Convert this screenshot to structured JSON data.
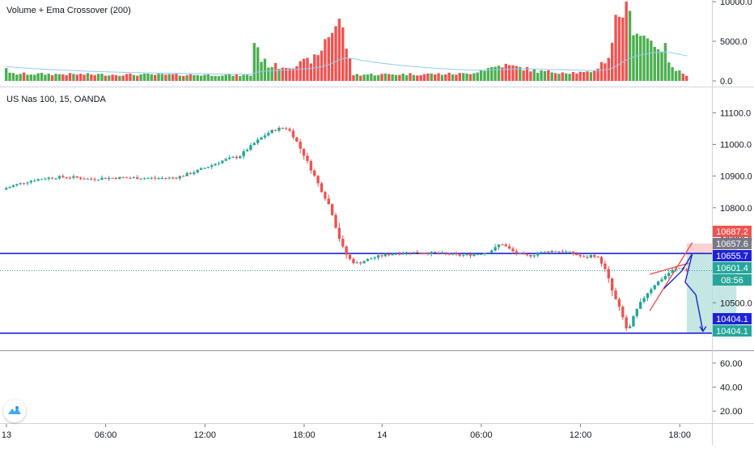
{
  "indicator_pane": {
    "label": "Volume + Ema Crossover (200)",
    "axis_ticks": [
      "10000.0",
      "5000.0",
      "0.0"
    ]
  },
  "price_pane": {
    "label": "US Nas 100, 15, OANDA",
    "price_badges": [
      {
        "text": "10687.2",
        "color": "#ef5350"
      },
      {
        "text": "10657.6",
        "color": "#787b86"
      },
      {
        "text": "10655.7",
        "color": "#1e22d6"
      },
      {
        "text": "10601.4",
        "color": "#26a69a"
      },
      {
        "text": "08:56",
        "color": "#26a69a"
      },
      {
        "text": "10404.1",
        "color": "#1e22d6"
      },
      {
        "text": "10404.1",
        "color": "#26a69a"
      }
    ]
  },
  "oscillator_pane": {
    "axis_ticks": [
      "60.00",
      "40.00",
      "20.00"
    ]
  },
  "time_axis": {
    "labels": [
      "13",
      "06:00",
      "12:00",
      "18:00",
      "14",
      "06:00",
      "12:00",
      "18:00"
    ]
  },
  "colors": {
    "up": "#26a69a",
    "down": "#ef5350",
    "volume_up": "#4caf50",
    "volume_down": "#ef5350",
    "level_line": "#1e22d6",
    "current_price_line": "#26a69a",
    "target_zone": "#b2dfdb",
    "stop_zone": "#f8c8c6"
  },
  "chart_data": {
    "type": "candlestick",
    "timeframe": "15",
    "price_ylim": [
      10350,
      11180
    ],
    "price_axis_ticks": [
      11100,
      11000,
      10900,
      10800,
      10700,
      10500
    ],
    "volume_ylim": [
      0,
      10000
    ],
    "horizontal_levels": [
      10655.7,
      10404.1
    ],
    "current_price": 10601.4,
    "path_segments": [
      [
        [
          0,
          10860
        ],
        [
          8,
          10895
        ],
        [
          16,
          10905
        ],
        [
          24,
          10890
        ]
      ],
      [
        [
          24,
          10890
        ],
        [
          32,
          10900
        ],
        [
          40,
          10890
        ],
        [
          48,
          10895
        ]
      ],
      [
        [
          48,
          10895
        ],
        [
          56,
          10915
        ],
        [
          62,
          10960
        ],
        [
          66,
          10960
        ]
      ],
      [
        [
          66,
          10960
        ],
        [
          72,
          11020
        ],
        [
          76,
          11060
        ],
        [
          80,
          11050
        ]
      ],
      [
        [
          80,
          11050
        ],
        [
          84,
          10990
        ],
        [
          88,
          10880
        ],
        [
          92,
          10800
        ]
      ],
      [
        [
          92,
          10800
        ],
        [
          94,
          10720
        ],
        [
          96,
          10620
        ],
        [
          100,
          10625
        ]
      ],
      [
        [
          100,
          10625
        ],
        [
          108,
          10668
        ],
        [
          118,
          10662
        ],
        [
          128,
          10650
        ]
      ],
      [
        [
          128,
          10650
        ],
        [
          134,
          10652
        ],
        [
          138,
          10658
        ],
        [
          140,
          10690
        ]
      ],
      [
        [
          140,
          10690
        ],
        [
          143,
          10665
        ],
        [
          146,
          10635
        ],
        [
          150,
          10655
        ]
      ],
      [
        [
          150,
          10655
        ],
        [
          156,
          10672
        ],
        [
          160,
          10660
        ],
        [
          164,
          10640
        ]
      ],
      [
        [
          164,
          10640
        ],
        [
          168,
          10680
        ],
        [
          170,
          10590
        ],
        [
          172,
          10520
        ]
      ],
      [
        [
          172,
          10520
        ],
        [
          174,
          10480
        ],
        [
          175,
          10430
        ],
        [
          176,
          10405
        ]
      ],
      [
        [
          176,
          10405
        ],
        [
          178,
          10490
        ],
        [
          182,
          10550
        ],
        [
          186,
          10580
        ]
      ],
      [
        [
          186,
          10580
        ],
        [
          188,
          10600
        ],
        [
          190,
          10620
        ],
        [
          192,
          10603
        ]
      ]
    ],
    "volume_profile": [
      [
        0,
        1800
      ],
      [
        1,
        900
      ],
      [
        30,
        800
      ],
      [
        60,
        750
      ],
      [
        69,
        700
      ],
      [
        70,
        5000
      ],
      [
        71,
        4200
      ],
      [
        72,
        2800
      ],
      [
        74,
        2000
      ],
      [
        78,
        1800
      ],
      [
        82,
        2000
      ],
      [
        88,
        3000
      ],
      [
        90,
        5200
      ],
      [
        92,
        6500
      ],
      [
        94,
        7800
      ],
      [
        96,
        4500
      ],
      [
        97,
        2500
      ],
      [
        98,
        800
      ],
      [
        130,
        900
      ],
      [
        140,
        2000
      ],
      [
        146,
        1600
      ],
      [
        150,
        1200
      ],
      [
        165,
        1000
      ],
      [
        170,
        3000
      ],
      [
        172,
        7500
      ],
      [
        174,
        9200
      ],
      [
        176,
        7800
      ],
      [
        178,
        6500
      ],
      [
        182,
        5000
      ],
      [
        186,
        4000
      ],
      [
        188,
        1500
      ],
      [
        192,
        800
      ]
    ],
    "target_zone": {
      "start_index": 192,
      "end_index": 206,
      "from": 10404.1,
      "to": 10655.7
    },
    "stop_zone": {
      "start_index": 192,
      "end_index": 206,
      "from": 10655.7,
      "to": 10687.2
    },
    "drawings": [
      {
        "type": "line",
        "color": "#ef5350",
        "points": [
          [
            182,
            10475
          ],
          [
            194,
            10690
          ]
        ]
      },
      {
        "type": "line",
        "color": "#ef5350",
        "points": [
          [
            182,
            10590
          ],
          [
            193,
            10625
          ]
        ]
      },
      {
        "type": "polyline",
        "color": "#1e22d6",
        "points": [
          [
            186,
            10545
          ],
          [
            191,
            10600
          ],
          [
            194,
            10655
          ],
          [
            192,
            10565
          ],
          [
            195,
            10525
          ],
          [
            197,
            10410
          ]
        ]
      }
    ],
    "time_axis_labels": [
      {
        "text": "13",
        "index": 0
      },
      {
        "text": "06:00",
        "index": 28
      },
      {
        "text": "12:00",
        "index": 56
      },
      {
        "text": "18:00",
        "index": 84
      },
      {
        "text": "14",
        "index": 106
      },
      {
        "text": "06:00",
        "index": 134
      },
      {
        "text": "12:00",
        "index": 162
      },
      {
        "text": "18:00",
        "index": 190
      }
    ],
    "oscillator_ylim": [
      10,
      70
    ]
  }
}
